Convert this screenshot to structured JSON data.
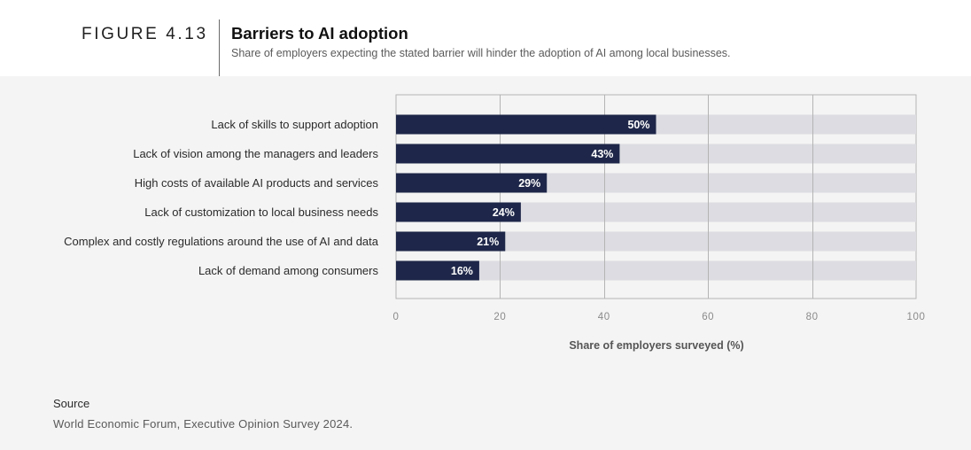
{
  "figure_label": "FIGURE 4.13",
  "title": "Barriers to AI adoption",
  "subtitle": "Share of employers expecting the stated barrier will hinder the adoption of AI among local businesses.",
  "source_heading": "Source",
  "source_text": "World Economic Forum, Executive Opinion Survey 2024.",
  "colors": {
    "bar": "#1e2749",
    "track": "#dcdce2",
    "grid": "#b4b4b4",
    "background": "#f4f4f4"
  },
  "chart_data": {
    "type": "bar",
    "orientation": "horizontal",
    "categories": [
      "Lack of skills to support adoption",
      "Lack of vision among the managers and leaders",
      "High costs of available AI products and services",
      "Lack of customization to local business needs",
      "Complex and costly regulations around the use of AI and data",
      "Lack of demand among consumers"
    ],
    "values": [
      50,
      43,
      29,
      24,
      21,
      16
    ],
    "value_labels": [
      "50%",
      "43%",
      "29%",
      "24%",
      "21%",
      "16%"
    ],
    "xlabel": "Share of employers surveyed (%)",
    "ylabel": "",
    "xlim": [
      0,
      100
    ],
    "xticks": [
      0,
      20,
      40,
      60,
      80,
      100
    ],
    "xtick_labels": [
      "0",
      "20",
      "40",
      "60",
      "80",
      "100"
    ],
    "grid": true,
    "legend": "none"
  }
}
